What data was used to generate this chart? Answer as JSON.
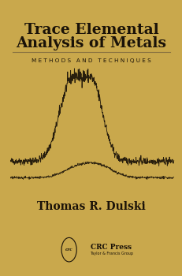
{
  "bg_color": "#C9A84C",
  "title_line1": "Trace Elemental",
  "title_line2": "Analysis of Metals",
  "subtitle": "M E T H O D S   A N D   T E C H N I Q U E S",
  "author": "Thomas R. Dulski",
  "publisher": "CRC Press",
  "publisher_sub": "Taylor & Francis Group",
  "title_fontsize": 13.5,
  "subtitle_fontsize": 5.2,
  "author_fontsize": 10,
  "text_color": "#1a1208",
  "line_color": "#1a1208",
  "divider_color": "#8B7340"
}
